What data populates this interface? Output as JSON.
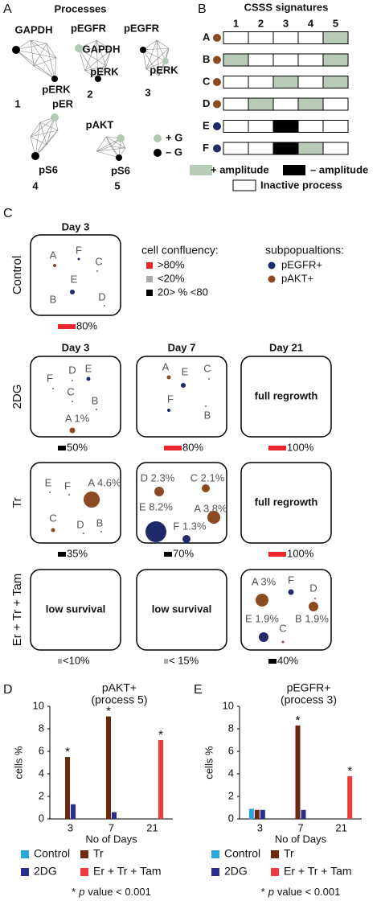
{
  "panel_a": {
    "label": "A",
    "title": "Processes",
    "networks": [
      {
        "nodes": [
          "GAPDH",
          "pERK"
        ],
        "number": "1"
      },
      {
        "nodes": [
          "pEGFR",
          "GAPDH",
          "pERK"
        ],
        "number": "2"
      },
      {
        "nodes": [
          "pEGFR",
          "pERK"
        ],
        "number": "3"
      },
      {
        "nodes": [
          "pER",
          "pS6"
        ],
        "number": "4"
      },
      {
        "nodes": [
          "pAKT",
          "pS6"
        ],
        "number": "5"
      }
    ],
    "legend": [
      {
        "text": "+ G",
        "color": "#b3c9b3"
      },
      {
        "text": "– G",
        "color": "#000000"
      }
    ]
  },
  "panel_b": {
    "label": "B",
    "title": "CSSS signatures",
    "columns": [
      "1",
      "2",
      "3",
      "4",
      "5"
    ],
    "rows": [
      {
        "name": "A",
        "color": "#8b4a22",
        "cells": [
          "#ffffff",
          "#ffffff",
          "#ffffff",
          "#ffffff",
          "#b7cbb7"
        ]
      },
      {
        "name": "B",
        "color": "#8b4a22",
        "cells": [
          "#b7cbb7",
          "#ffffff",
          "#ffffff",
          "#ffffff",
          "#b7cbb7"
        ]
      },
      {
        "name": "C",
        "color": "#8b4a22",
        "cells": [
          "#ffffff",
          "#ffffff",
          "#b7cbb7",
          "#ffffff",
          "#b7cbb7"
        ]
      },
      {
        "name": "D",
        "color": "#8b4a22",
        "cells": [
          "#ffffff",
          "#b7cbb7",
          "#ffffff",
          "#b7cbb7",
          "#ffffff"
        ]
      },
      {
        "name": "E",
        "color": "#1f2a6b",
        "cells": [
          "#ffffff",
          "#ffffff",
          "#000000",
          "#ffffff",
          "#ffffff"
        ]
      },
      {
        "name": "F",
        "color": "#1f2a6b",
        "cells": [
          "#ffffff",
          "#ffffff",
          "#000000",
          "#b7cbb7",
          "#ffffff"
        ]
      }
    ],
    "legend": [
      {
        "text": "+ amplitude",
        "color": "#b7cbb7"
      },
      {
        "text": "– amplitude",
        "color": "#000000"
      },
      {
        "text": "Inactive process",
        "color": "#ffffff"
      }
    ]
  },
  "panel_c": {
    "label": "C",
    "control_header": "Day 3",
    "headers": [
      "Day 3",
      "Day 7",
      "Day 21"
    ],
    "confluency": {
      "title": "cell confluency:",
      "items": [
        {
          "text": ">80%",
          "color": "#e8262b"
        },
        {
          "text": "<20%",
          "color": "#aaaaaa"
        },
        {
          "text": "20> % <80",
          "color": "#000000"
        }
      ]
    },
    "subpopulations": {
      "title": "subpopualtions:",
      "items": [
        {
          "text": "pEGFR+",
          "color": "#1f2a6b"
        },
        {
          "text": "pAKT+",
          "color": "#8b4a22"
        }
      ]
    },
    "rows": [
      {
        "name": "Control",
        "boxes": [
          {
            "points": [
              {
                "label": "A",
                "color": "#8b4a22"
              },
              {
                "label": "F",
                "color": "#1f2a6b"
              },
              {
                "label": "C",
                "color": "#666666"
              },
              {
                "label": "E",
                "color": "#1f2a6b"
              },
              {
                "label": "B"
              },
              {
                "label": "D",
                "color": "#666666"
              }
            ],
            "bar": {
              "label": "80%",
              "color": "#e8262b"
            }
          }
        ]
      },
      {
        "name": "2DG",
        "boxes": [
          {
            "points": [
              {
                "label": "F",
                "color": "#666666"
              },
              {
                "label": "D",
                "color": "#666666"
              },
              {
                "label": "E",
                "color": "#1f2a6b"
              },
              {
                "label": "C",
                "color": "#666666"
              },
              {
                "label": "B",
                "color": "#666666"
              },
              {
                "label": "A 1%",
                "color": "#8b4a22"
              }
            ],
            "bar": {
              "label": "50%",
              "color": "#000000"
            }
          },
          {
            "points": [
              {
                "label": "A",
                "color": "#8b4a22"
              },
              {
                "label": "E",
                "color": "#1f2a6b"
              },
              {
                "label": "C",
                "color": "#666666"
              },
              {
                "label": "F",
                "color": "#1f2a6b"
              },
              {
                "label": "B",
                "color": "#666666"
              }
            ],
            "bar": {
              "label": "80%",
              "color": "#e8262b"
            }
          },
          {
            "text": "full regrowth",
            "bar": {
              "label": "100%",
              "color": "#e8262b"
            }
          }
        ]
      },
      {
        "name": "Tr",
        "boxes": [
          {
            "points": [
              {
                "label": "E",
                "color": "#666666"
              },
              {
                "label": "F",
                "color": "#666666"
              },
              {
                "label": "A 4.6%",
                "color": "#8b4a22"
              },
              {
                "label": "C",
                "color": "#8b4a22"
              },
              {
                "label": "D",
                "color": "#666666"
              },
              {
                "label": "B",
                "color": "#666666"
              }
            ],
            "bar": {
              "label": "35%",
              "color": "#000000"
            }
          },
          {
            "points": [
              {
                "label": "D 2.3%",
                "color": "#8b4a22"
              },
              {
                "label": "C 2.1%",
                "color": "#8b4a22"
              },
              {
                "label": "E 8.2%",
                "color": "#1f2a6b"
              },
              {
                "label": "A 3.8%",
                "color": "#8b4a22"
              },
              {
                "label": "F 1.3%",
                "color": "#1f2a6b"
              }
            ],
            "bar": {
              "label": "70%",
              "color": "#000000"
            }
          },
          {
            "text": "full regrowth",
            "bar": {
              "label": "100%",
              "color": "#e8262b"
            }
          }
        ]
      },
      {
        "name": "Er + Tr + Tam",
        "boxes": [
          {
            "text": "low survival",
            "bar": {
              "label": "<10%",
              "color": "#aaaaaa"
            }
          },
          {
            "text": "low survival",
            "bar": {
              "label": "< 15%",
              "color": "#aaaaaa"
            }
          },
          {
            "points": [
              {
                "label": "A 3%",
                "color": "#8b4a22"
              },
              {
                "label": "F",
                "color": "#1f2a6b"
              },
              {
                "label": "D",
                "color": "#666666"
              },
              {
                "label": "E 1.9%",
                "color": "#1f2a6b"
              },
              {
                "label": "C",
                "color": "#8b4a22"
              },
              {
                "label": "B 1.9%",
                "color": "#8b4a22"
              }
            ],
            "bar": {
              "label": "40%",
              "color": "#000000"
            }
          }
        ]
      }
    ]
  },
  "chart_data": [
    {
      "type": "bar",
      "panel_label": "D",
      "title": "pAKT+",
      "subtitle": "(process 5)",
      "xlabel": "No of Days",
      "ylabel": "cells %",
      "categories": [
        "3",
        "7",
        "21"
      ],
      "ylim": [
        0,
        10
      ],
      "yticks": [
        0,
        2,
        4,
        6,
        8,
        10
      ],
      "series": [
        {
          "name": "Control",
          "color": "#2aa6dd",
          "values": [
            null,
            null,
            null
          ],
          "starred": [
            false,
            false,
            false
          ]
        },
        {
          "name": "Tr",
          "color": "#6b2a0e",
          "values": [
            5.5,
            9.1,
            null
          ],
          "starred": [
            true,
            true,
            false
          ]
        },
        {
          "name": "2DG",
          "color": "#2a2f8f",
          "values": [
            1.3,
            0.6,
            null
          ],
          "starred": [
            false,
            false,
            false
          ]
        },
        {
          "name": "Er + Tr + Tam",
          "color": "#ee3b3b",
          "values": [
            null,
            null,
            7.0
          ],
          "starred": [
            false,
            false,
            true
          ]
        }
      ],
      "footnote": {
        "mark": "*",
        "italic": "p",
        "text": "value < 0.001"
      }
    },
    {
      "type": "bar",
      "panel_label": "E",
      "title": "pEGFR+",
      "subtitle": "(process 3)",
      "xlabel": "No of Days",
      "ylabel": "cells %",
      "categories": [
        "3",
        "7",
        "21"
      ],
      "ylim": [
        0,
        10
      ],
      "yticks": [
        0,
        2,
        4,
        6,
        8,
        10
      ],
      "series": [
        {
          "name": "Control",
          "color": "#2aa6dd",
          "values": [
            0.9,
            null,
            null
          ],
          "starred": [
            false,
            false,
            false
          ]
        },
        {
          "name": "Tr",
          "color": "#6b2a0e",
          "values": [
            0.8,
            8.3,
            null
          ],
          "starred": [
            false,
            true,
            false
          ]
        },
        {
          "name": "2DG",
          "color": "#2a2f8f",
          "values": [
            0.8,
            0.8,
            null
          ],
          "starred": [
            false,
            false,
            false
          ]
        },
        {
          "name": "Er + Tr + Tam",
          "color": "#ee3b3b",
          "values": [
            null,
            null,
            3.8
          ],
          "starred": [
            false,
            false,
            true
          ]
        }
      ],
      "footnote": {
        "mark": "*",
        "italic": "p",
        "text": "value < 0.001"
      }
    }
  ]
}
